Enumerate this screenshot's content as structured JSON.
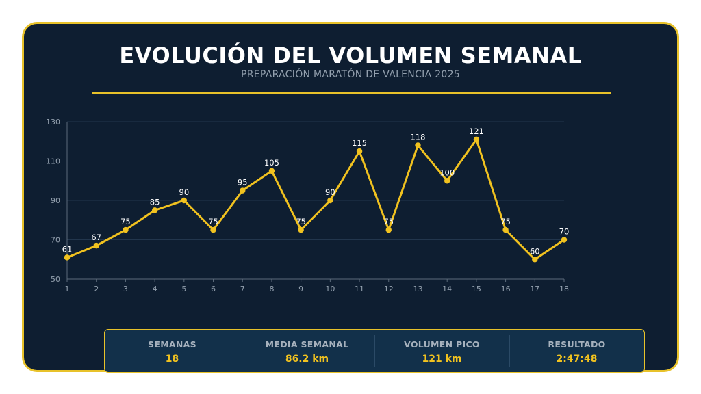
{
  "header": {
    "title": "EVOLUCIÓN DEL VOLUMEN SEMANAL",
    "subtitle": "PREPARACIÓN MARATÓN DE VALENCIA 2025"
  },
  "colors": {
    "background": "#0e1e31",
    "accent": "#e8c22a",
    "line": "#f1c21f",
    "grid": "#22364d",
    "axis_text": "#93a0ae",
    "label_text": "#ffffff"
  },
  "chart_data": {
    "type": "line",
    "title": "",
    "xlabel": "",
    "ylabel": "",
    "x": [
      1,
      2,
      3,
      4,
      5,
      6,
      7,
      8,
      9,
      10,
      11,
      12,
      13,
      14,
      15,
      16,
      17,
      18
    ],
    "series": [
      {
        "values": [
          61,
          67,
          75,
          85,
          90,
          75,
          95,
          105,
          75,
          90,
          115,
          75,
          118,
          100,
          121,
          75,
          60,
          70
        ]
      }
    ],
    "data_labels": [
      "61",
      "67",
      "75",
      "85",
      "90",
      "75",
      "95",
      "105",
      "75",
      "90",
      "115",
      "75",
      "118",
      "100",
      "121",
      "75",
      "60",
      "70"
    ],
    "ylim": [
      50,
      130
    ],
    "yticks": [
      50,
      70,
      90,
      110,
      130
    ],
    "grid": true,
    "legend": "none"
  },
  "stats": [
    {
      "label": "SEMANAS",
      "value": "18"
    },
    {
      "label": "MEDIA SEMANAL",
      "value": "86.2 km"
    },
    {
      "label": "VOLUMEN PICO",
      "value": "121 km"
    },
    {
      "label": "RESULTADO",
      "value": "2:47:48"
    }
  ]
}
